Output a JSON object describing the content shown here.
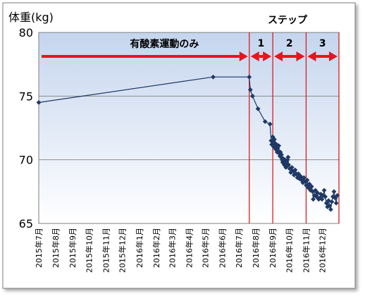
{
  "chart_data": {
    "type": "line",
    "ylabel": "体重(kg)",
    "ylim": [
      65,
      80
    ],
    "yticks": [
      65,
      70,
      75,
      80
    ],
    "xlim": [
      "2015-07-01",
      "2016-12-31"
    ],
    "xtick_labels": [
      "2015年7月",
      "2015年8月",
      "2015年9月",
      "2015年10月",
      "2015年11月",
      "2015年12月",
      "2016年1月",
      "2016年2月",
      "2016年3月",
      "2016年4月",
      "2016年5月",
      "2016年6月",
      "2016年7月",
      "2016年8月",
      "2016年9月",
      "2016年10月",
      "2016年11月",
      "2016年12月"
    ],
    "xtick_dates": [
      "2015-07-01",
      "2015-08-01",
      "2015-09-01",
      "2015-10-01",
      "2015-11-01",
      "2015-12-01",
      "2016-01-01",
      "2016-02-01",
      "2016-03-01",
      "2016-04-01",
      "2016-05-01",
      "2016-06-01",
      "2016-07-01",
      "2016-08-01",
      "2016-09-01",
      "2016-10-01",
      "2016-11-01",
      "2016-12-01"
    ],
    "grid": true,
    "series": [
      {
        "name": "",
        "color": "#1f3864",
        "points": [
          {
            "x": "2015-07-01",
            "y": 74.5
          },
          {
            "x": "2016-05-15",
            "y": 76.5
          },
          {
            "x": "2016-07-20",
            "y": 76.5
          },
          {
            "x": "2016-07-22",
            "y": 75.5
          },
          {
            "x": "2016-07-26",
            "y": 75.0
          },
          {
            "x": "2016-08-05",
            "y": 74.0
          },
          {
            "x": "2016-08-18",
            "y": 73.0
          },
          {
            "x": "2016-08-27",
            "y": 72.8
          },
          {
            "x": "2016-08-29",
            "y": 71.5
          },
          {
            "x": "2016-08-30",
            "y": 71.2
          },
          {
            "x": "2016-09-01",
            "y": 71.8
          },
          {
            "x": "2016-09-02",
            "y": 71.5
          },
          {
            "x": "2016-09-03",
            "y": 71.0
          },
          {
            "x": "2016-09-04",
            "y": 71.6
          },
          {
            "x": "2016-09-05",
            "y": 71.3
          },
          {
            "x": "2016-09-06",
            "y": 71.0
          },
          {
            "x": "2016-09-07",
            "y": 70.8
          },
          {
            "x": "2016-09-08",
            "y": 71.2
          },
          {
            "x": "2016-09-09",
            "y": 70.6
          },
          {
            "x": "2016-09-10",
            "y": 70.9
          },
          {
            "x": "2016-09-11",
            "y": 70.7
          },
          {
            "x": "2016-09-12",
            "y": 71.1
          },
          {
            "x": "2016-09-13",
            "y": 70.5
          },
          {
            "x": "2016-09-14",
            "y": 70.3
          },
          {
            "x": "2016-09-15",
            "y": 70.6
          },
          {
            "x": "2016-09-16",
            "y": 70.2
          },
          {
            "x": "2016-09-17",
            "y": 70.4
          },
          {
            "x": "2016-09-18",
            "y": 70.0
          },
          {
            "x": "2016-09-19",
            "y": 69.8
          },
          {
            "x": "2016-09-20",
            "y": 70.1
          },
          {
            "x": "2016-09-21",
            "y": 69.9
          },
          {
            "x": "2016-09-22",
            "y": 69.6
          },
          {
            "x": "2016-09-23",
            "y": 70.0
          },
          {
            "x": "2016-09-24",
            "y": 69.7
          },
          {
            "x": "2016-09-25",
            "y": 69.4
          },
          {
            "x": "2016-09-26",
            "y": 69.8
          },
          {
            "x": "2016-09-27",
            "y": 69.5
          },
          {
            "x": "2016-09-28",
            "y": 70.0
          },
          {
            "x": "2016-09-29",
            "y": 70.2
          },
          {
            "x": "2016-09-30",
            "y": 69.6
          },
          {
            "x": "2016-10-02",
            "y": 69.3
          },
          {
            "x": "2016-10-04",
            "y": 69.0
          },
          {
            "x": "2016-10-06",
            "y": 69.4
          },
          {
            "x": "2016-10-08",
            "y": 69.1
          },
          {
            "x": "2016-10-10",
            "y": 68.8
          },
          {
            "x": "2016-10-12",
            "y": 69.2
          },
          {
            "x": "2016-10-14",
            "y": 68.9
          },
          {
            "x": "2016-10-16",
            "y": 68.6
          },
          {
            "x": "2016-10-18",
            "y": 68.9
          },
          {
            "x": "2016-10-20",
            "y": 68.5
          },
          {
            "x": "2016-10-22",
            "y": 68.7
          },
          {
            "x": "2016-10-24",
            "y": 68.4
          },
          {
            "x": "2016-10-26",
            "y": 68.2
          },
          {
            "x": "2016-10-28",
            "y": 68.6
          },
          {
            "x": "2016-10-30",
            "y": 68.3
          },
          {
            "x": "2016-11-01",
            "y": 68.0
          },
          {
            "x": "2016-11-03",
            "y": 68.4
          },
          {
            "x": "2016-11-05",
            "y": 67.8
          },
          {
            "x": "2016-11-07",
            "y": 68.1
          },
          {
            "x": "2016-11-09",
            "y": 67.6
          },
          {
            "x": "2016-11-11",
            "y": 67.9
          },
          {
            "x": "2016-11-13",
            "y": 67.5
          },
          {
            "x": "2016-11-14",
            "y": 66.9
          },
          {
            "x": "2016-11-16",
            "y": 67.2
          },
          {
            "x": "2016-11-18",
            "y": 67.6
          },
          {
            "x": "2016-11-20",
            "y": 67.1
          },
          {
            "x": "2016-11-22",
            "y": 67.4
          },
          {
            "x": "2016-11-24",
            "y": 66.9
          },
          {
            "x": "2016-11-26",
            "y": 67.0
          },
          {
            "x": "2016-11-28",
            "y": 67.3
          },
          {
            "x": "2016-11-30",
            "y": 66.9
          },
          {
            "x": "2016-12-02",
            "y": 67.2
          },
          {
            "x": "2016-12-04",
            "y": 67.6
          },
          {
            "x": "2016-12-06",
            "y": 67.1
          },
          {
            "x": "2016-12-08",
            "y": 66.6
          },
          {
            "x": "2016-12-10",
            "y": 66.3
          },
          {
            "x": "2016-12-12",
            "y": 66.8
          },
          {
            "x": "2016-12-14",
            "y": 66.4
          },
          {
            "x": "2016-12-16",
            "y": 66.1
          },
          {
            "x": "2016-12-18",
            "y": 66.7
          },
          {
            "x": "2016-12-20",
            "y": 67.1
          },
          {
            "x": "2016-12-22",
            "y": 67.5
          },
          {
            "x": "2016-12-24",
            "y": 67.0
          },
          {
            "x": "2016-12-26",
            "y": 66.6
          },
          {
            "x": "2016-12-28",
            "y": 67.2
          }
        ]
      }
    ],
    "phase_lines": [
      "2016-07-20",
      "2016-09-01",
      "2016-11-01",
      "2016-12-31"
    ],
    "annotations": {
      "steps_heading": "ステップ",
      "aerobic_label": "有酸素運動のみ",
      "aerobic_range": [
        "2015-07-01",
        "2016-07-20"
      ],
      "steps": [
        {
          "label": "1",
          "range": [
            "2016-07-20",
            "2016-09-01"
          ]
        },
        {
          "label": "2",
          "range": [
            "2016-09-01",
            "2016-11-01"
          ]
        },
        {
          "label": "3",
          "range": [
            "2016-11-01",
            "2016-12-31"
          ]
        }
      ],
      "arrow_color": "#e8141b",
      "phase_line_color": "#d42020"
    },
    "style": {
      "plot_gradient_top": "#c5d5ee",
      "plot_gradient_bottom": "#ffffff",
      "gridline_color": "#8c8c8c",
      "frame_border": "#7f7f7f"
    }
  }
}
